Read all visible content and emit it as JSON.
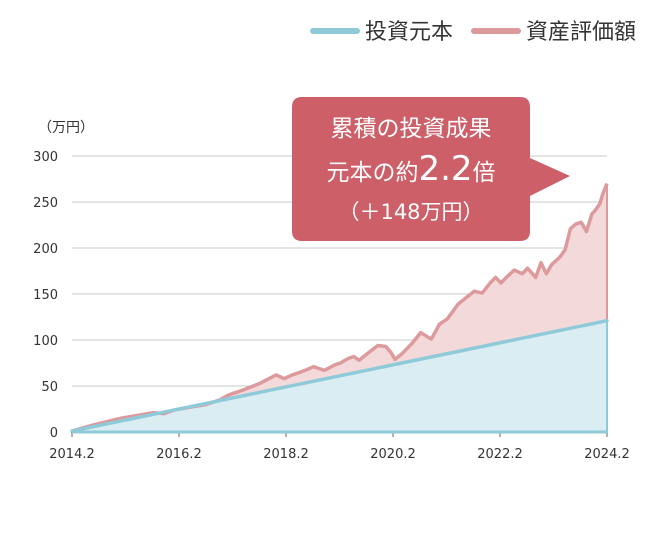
{
  "legend": {
    "principal_label": "投資元本",
    "assets_label": "資産評価額"
  },
  "callout": {
    "line1": "累積の投資成果",
    "line2_prefix": "元本の約",
    "line2_value": "2.2",
    "line2_suffix": "倍",
    "line3": "（＋148万円）"
  },
  "colors": {
    "principal_line": "#8fcad8",
    "principal_fill": "#d9edf3",
    "assets_line": "#dd9a9d",
    "assets_fill": "#f4d9da",
    "callout_bg": "#cc5f68",
    "callout_text": "#ffffff",
    "grid": "#c8c8c8",
    "axis": "#666666"
  },
  "chart_data": {
    "type": "area",
    "ylabel": "（万円）",
    "xlabel": "",
    "ylim": [
      0,
      300
    ],
    "yticks": [
      0,
      50,
      100,
      150,
      200,
      250,
      300
    ],
    "xlim": [
      2014.0833,
      2024.0833
    ],
    "xticks": [
      {
        "value": 2014.0833,
        "label": "2014.2"
      },
      {
        "value": 2016.0833,
        "label": "2016.2"
      },
      {
        "value": 2018.0833,
        "label": "2018.2"
      },
      {
        "value": 2020.0833,
        "label": "2020.2"
      },
      {
        "value": 2022.0833,
        "label": "2022.2"
      },
      {
        "value": 2024.0833,
        "label": "2024.2"
      }
    ],
    "grid": true,
    "legend_position": "top-right",
    "series": [
      {
        "name": "投資元本",
        "x": [
          2014.0833,
          2024.0833
        ],
        "values": [
          1,
          121
        ]
      },
      {
        "name": "資産評価額",
        "x": [
          2014.08,
          2014.5,
          2015.0,
          2015.3,
          2015.6,
          2015.8,
          2016.0,
          2016.3,
          2016.6,
          2016.85,
          2017.0,
          2017.3,
          2017.6,
          2017.9,
          2018.05,
          2018.2,
          2018.4,
          2018.6,
          2018.8,
          2019.0,
          2019.1,
          2019.25,
          2019.35,
          2019.45,
          2019.6,
          2019.8,
          2019.95,
          2020.05,
          2020.12,
          2020.25,
          2020.45,
          2020.6,
          2020.8,
          2020.95,
          2021.1,
          2021.3,
          2021.45,
          2021.6,
          2021.75,
          2021.9,
          2022.0,
          2022.1,
          2022.2,
          2022.35,
          2022.5,
          2022.6,
          2022.75,
          2022.85,
          2022.95,
          2023.05,
          2023.2,
          2023.3,
          2023.4,
          2023.5,
          2023.6,
          2023.7,
          2023.8,
          2023.85,
          2023.95,
          2024.0,
          2024.0833
        ],
        "values": [
          1,
          8,
          15,
          18,
          21,
          20,
          24,
          27,
          30,
          35,
          40,
          46,
          53,
          62,
          58,
          62,
          66,
          71,
          67,
          73,
          75,
          80,
          82,
          78,
          85,
          94,
          93,
          86,
          79,
          85,
          97,
          108,
          101,
          117,
          123,
          139,
          146,
          153,
          151,
          162,
          168,
          162,
          168,
          176,
          172,
          178,
          168,
          184,
          172,
          182,
          190,
          198,
          221,
          226,
          228,
          218,
          237,
          240,
          248,
          258,
          270
        ]
      }
    ]
  }
}
